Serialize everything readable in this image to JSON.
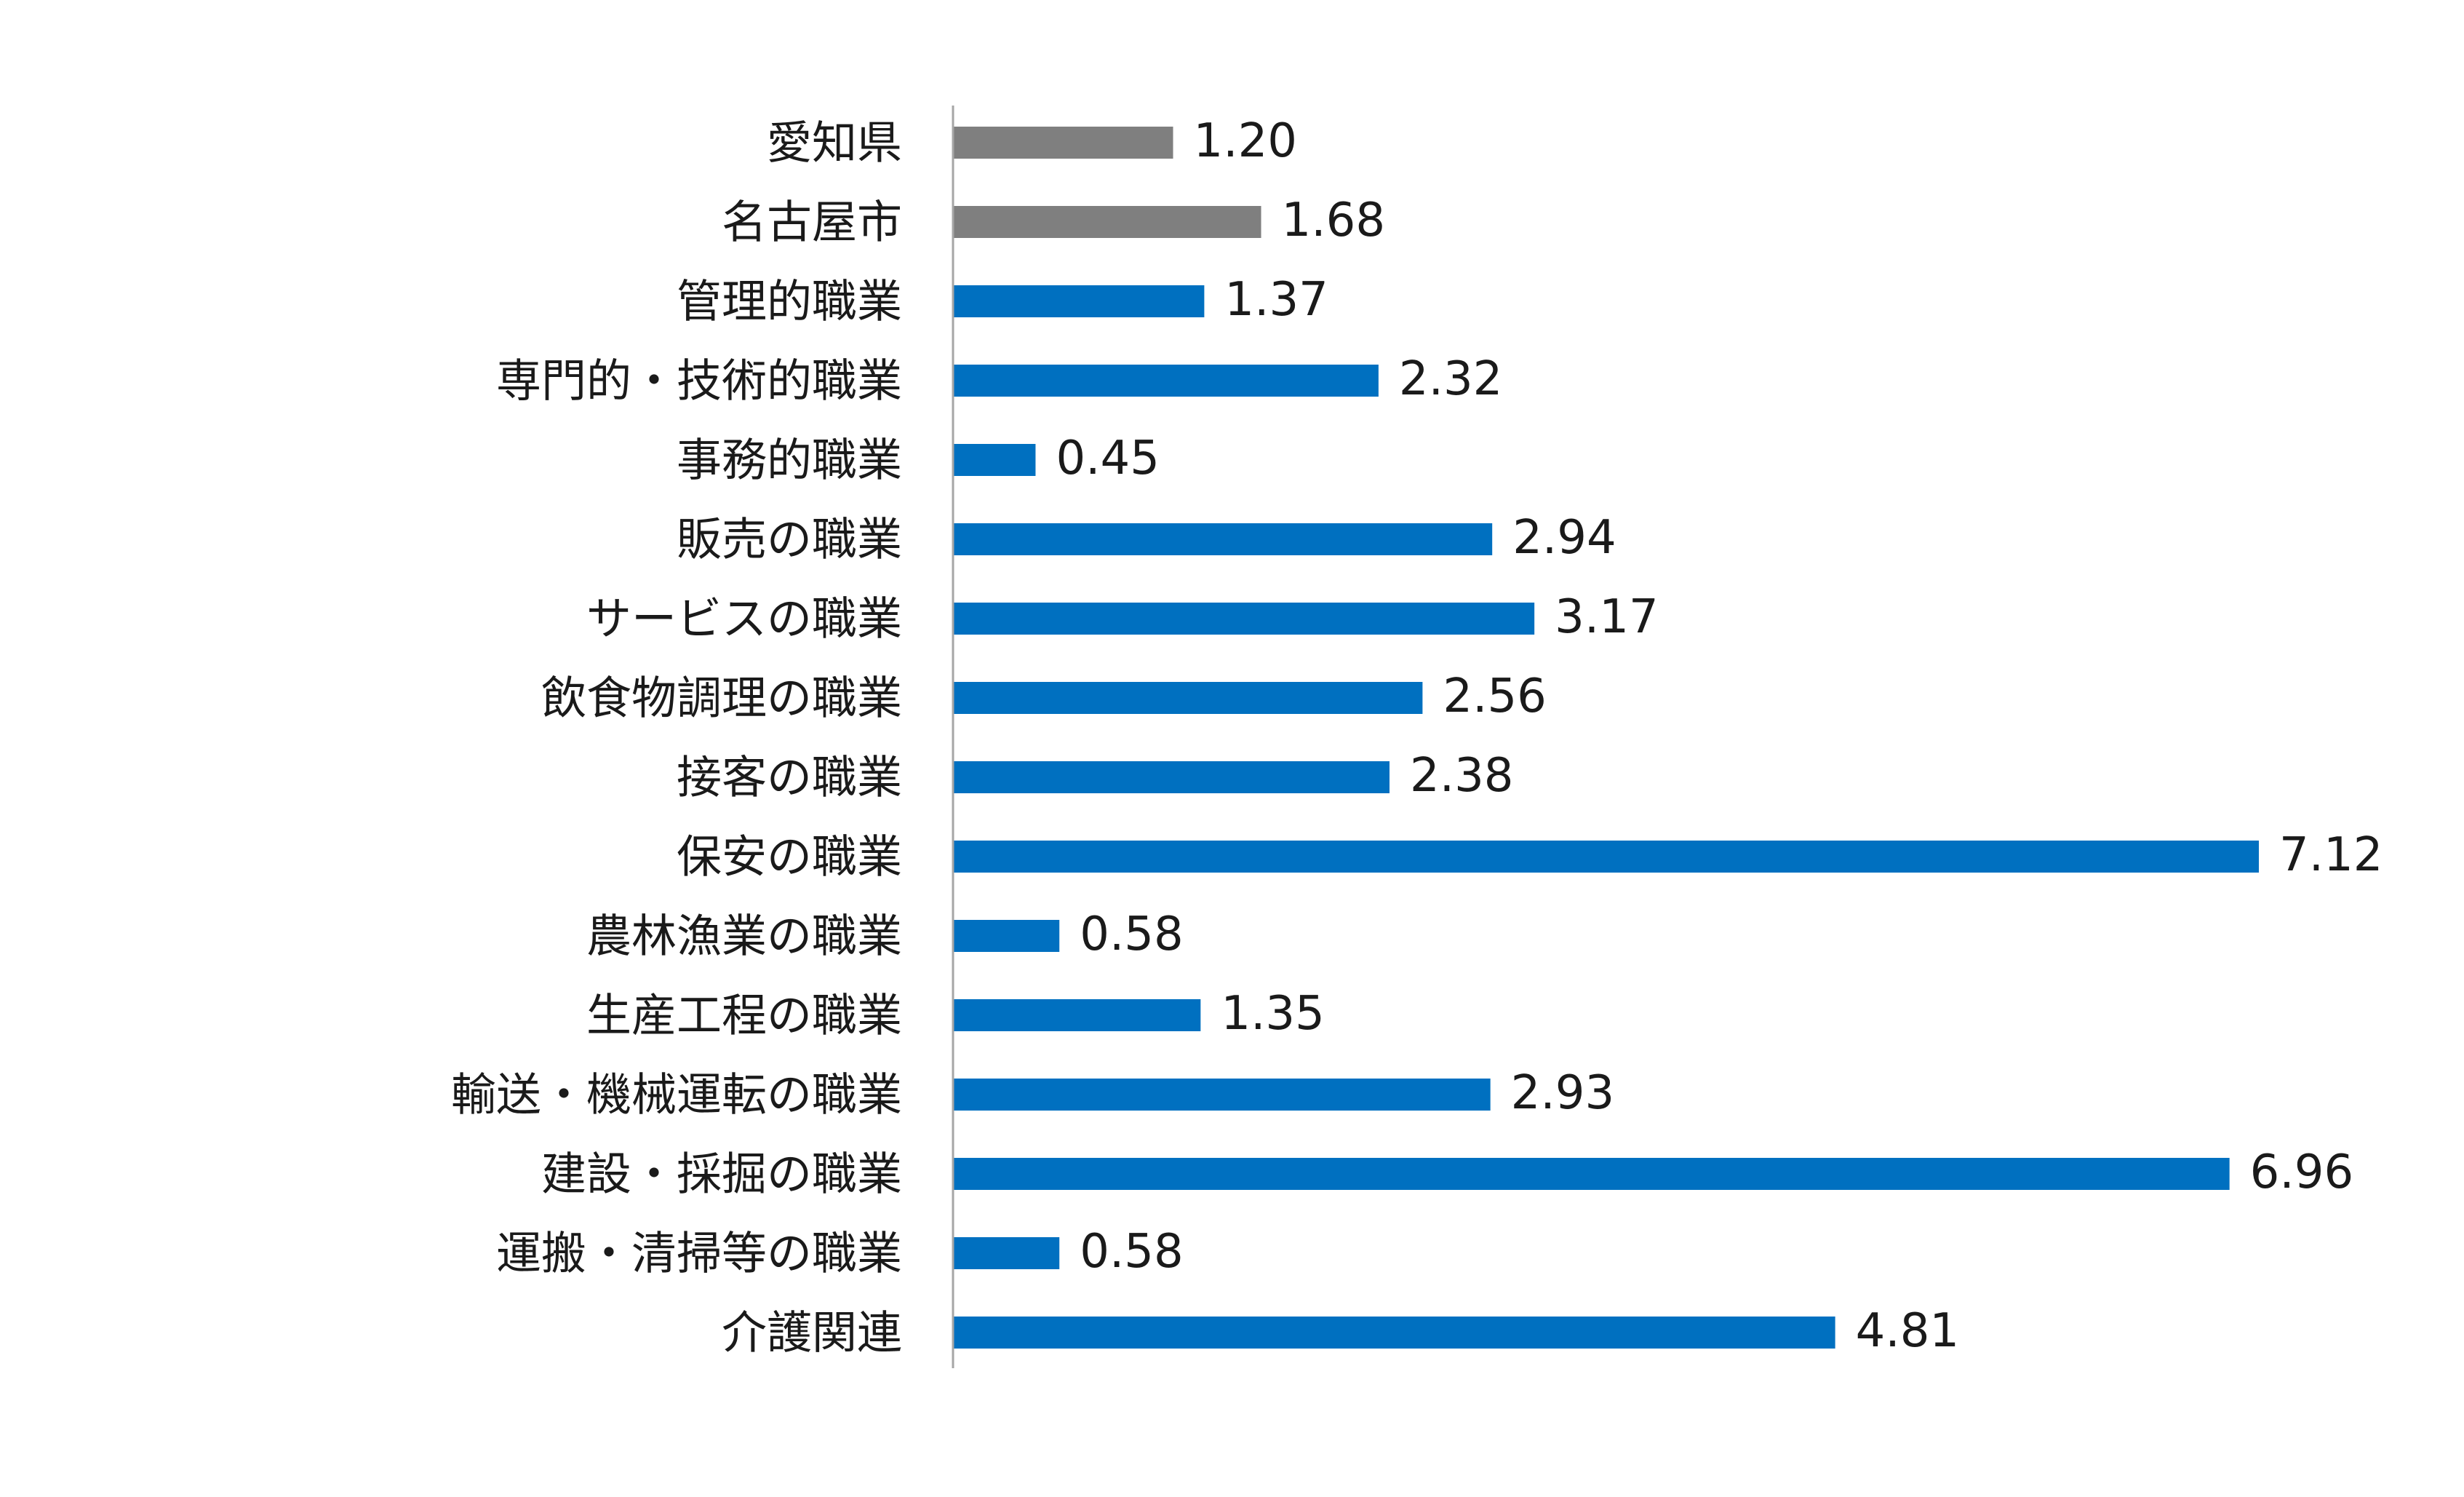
{
  "chart_data": {
    "type": "bar",
    "orientation": "horizontal",
    "categories": [
      "愛知県",
      "名古屋市",
      "管理的職業",
      "専門的・技術的職業",
      "事務的職業",
      "販売の職業",
      "サービスの職業",
      "飲食物調理の職業",
      "接客の職業",
      "保安の職業",
      "農林漁業の職業",
      "生産工程の職業",
      "輸送・機械運転の職業",
      "建設・採掘の職業",
      "運搬・清掃等の職業",
      "介護関連"
    ],
    "values": [
      1.2,
      1.68,
      1.37,
      2.32,
      0.45,
      2.94,
      3.17,
      2.56,
      2.38,
      7.12,
      0.58,
      1.35,
      2.93,
      6.96,
      0.58,
      4.81
    ],
    "value_labels": [
      "1.20",
      "1.68",
      "1.37",
      "2.32",
      "0.45",
      "2.94",
      "3.17",
      "2.56",
      "2.38",
      "7.12",
      "0.58",
      "1.35",
      "2.93",
      "6.96",
      "0.58",
      "4.81"
    ],
    "bar_colors": [
      "#7f7f7f",
      "#7f7f7f",
      "#0070c0",
      "#0070c0",
      "#0070c0",
      "#0070c0",
      "#0070c0",
      "#0070c0",
      "#0070c0",
      "#0070c0",
      "#0070c0",
      "#0070c0",
      "#0070c0",
      "#0070c0",
      "#0070c0",
      "#0070c0"
    ],
    "xlim": [
      0,
      7.12
    ],
    "grid": false,
    "legend": "none",
    "axis_color": "#a6a6a6"
  }
}
